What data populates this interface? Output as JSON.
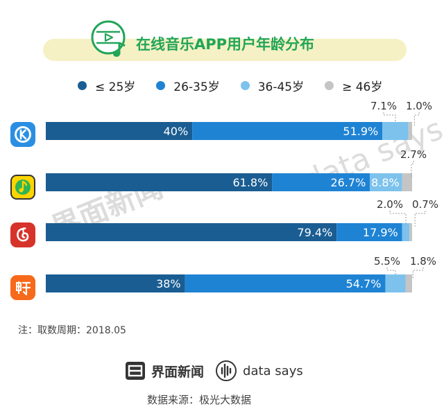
{
  "header": {
    "title": "在线音乐APP用户年龄分布",
    "bar_color": "#f6f1c4",
    "icon": "music-note-play-icon",
    "icon_color": "#22a559"
  },
  "chart_data": {
    "type": "bar",
    "orientation": "horizontal",
    "stacked": true,
    "title": "在线音乐APP用户年龄分布",
    "legend_position": "top",
    "xlim": [
      0,
      100
    ],
    "categories": [
      "",
      "",
      "",
      ""
    ],
    "series": [
      {
        "name": "≤ 25岁",
        "values": [
          40,
          61.8,
          79.4,
          38
        ],
        "labels": [
          "40%",
          "61.8%",
          "79.4%",
          "38%"
        ],
        "color": "#1a5d92"
      },
      {
        "name": "26-35岁",
        "values": [
          51.9,
          26.7,
          17.9,
          54.7
        ],
        "labels": [
          "51.9%",
          "26.7%",
          "17.9%",
          "54.7%"
        ],
        "color": "#1f83d4"
      },
      {
        "name": "36-45岁",
        "values": [
          7.1,
          8.8,
          2.0,
          5.5
        ],
        "labels": [
          "7.1%",
          "8.8%",
          "2.0%",
          "5.5%"
        ],
        "color": "#7cc2ec"
      },
      {
        "name": "≥ 46岁",
        "values": [
          1.0,
          2.7,
          0.7,
          1.8
        ],
        "labels": [
          "1.0%",
          "2.7%",
          "0.7%",
          "1.8%"
        ],
        "color": "#c5c5c5"
      }
    ],
    "app_icons": [
      {
        "icon": "kugou-music-icon",
        "color": "#2a8fe3"
      },
      {
        "icon": "qq-music-icon",
        "color": "#ffd400"
      },
      {
        "icon": "netease-cloud-music-icon",
        "color": "#d6332a"
      },
      {
        "icon": "xiami-music-icon",
        "color": "#f76a1b"
      }
    ]
  },
  "footer": {
    "note": "注：取数周期：2018.05",
    "brand_jiemian": "界面新闻",
    "brand_datasays": "data says",
    "source": "数据来源：极光大数据"
  },
  "watermark": {
    "jiemian": "界面新闻",
    "datasays": "data says"
  }
}
